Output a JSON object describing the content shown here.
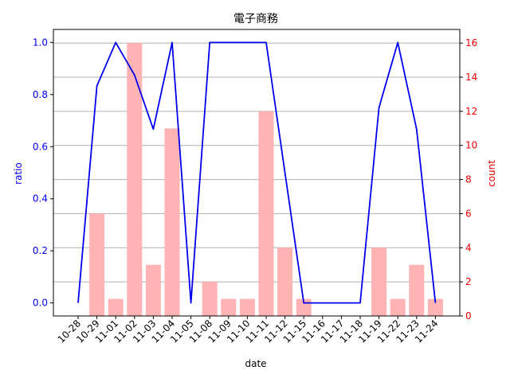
{
  "chart_data": {
    "type": "bar+line",
    "title": "電子商務",
    "xlabel": "date",
    "ylabel_left": "ratio",
    "ylabel_right": "count",
    "categories": [
      "10-28",
      "10-29",
      "11-01",
      "11-02",
      "11-03",
      "11-04",
      "11-05",
      "11-08",
      "11-09",
      "11-10",
      "11-11",
      "11-12",
      "11-15",
      "11-16",
      "11-17",
      "11-18",
      "11-19",
      "11-22",
      "11-23",
      "11-24"
    ],
    "series": [
      {
        "axis": "right",
        "kind": "bar",
        "color": "#ffb3b3",
        "values": [
          0,
          6,
          1,
          16,
          3,
          11,
          0,
          2,
          1,
          1,
          12,
          4,
          1,
          0,
          0,
          0,
          4,
          1,
          3,
          1
        ]
      },
      {
        "axis": "left",
        "kind": "line",
        "color": "#0000ee",
        "values": [
          0.0,
          0.833,
          1.0,
          0.875,
          0.667,
          1.0,
          0.0,
          1.0,
          1.0,
          1.0,
          1.0,
          0.5,
          0.0,
          0.0,
          0.0,
          0.0,
          0.75,
          1.0,
          0.667,
          0.0
        ]
      }
    ],
    "ylim_left": [
      -0.05,
      1.05
    ],
    "ylim_right": [
      0,
      16.8
    ],
    "yticks_left": [
      0.0,
      0.2,
      0.4,
      0.6,
      0.8,
      1.0
    ],
    "ytick_labels_left": [
      "0.0",
      "0.2",
      "0.4",
      "0.6",
      "0.8",
      "1.0"
    ],
    "yticks_right": [
      0,
      2,
      4,
      6,
      8,
      10,
      12,
      14,
      16
    ],
    "ytick_labels_right": [
      "0",
      "2",
      "4",
      "6",
      "8",
      "10",
      "12",
      "14",
      "16"
    ],
    "grid": "horizontal, right axis",
    "colors": {
      "left_axis": "#0000ee",
      "right_axis": "#ee0000",
      "grid": "#b0b0b0"
    }
  }
}
